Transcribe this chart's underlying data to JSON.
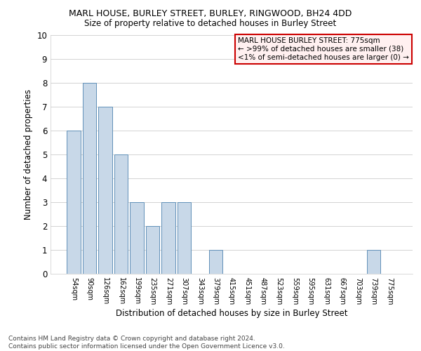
{
  "title1": "MARL HOUSE, BURLEY STREET, BURLEY, RINGWOOD, BH24 4DD",
  "title2": "Size of property relative to detached houses in Burley Street",
  "xlabel": "Distribution of detached houses by size in Burley Street",
  "ylabel": "Number of detached properties",
  "bar_color": "#c8d8e8",
  "bar_edgecolor": "#6090b8",
  "categories": [
    "54sqm",
    "90sqm",
    "126sqm",
    "162sqm",
    "199sqm",
    "235sqm",
    "271sqm",
    "307sqm",
    "343sqm",
    "379sqm",
    "415sqm",
    "451sqm",
    "487sqm",
    "523sqm",
    "559sqm",
    "595sqm",
    "631sqm",
    "667sqm",
    "703sqm",
    "739sqm",
    "775sqm"
  ],
  "values": [
    6,
    8,
    7,
    5,
    3,
    2,
    3,
    3,
    0,
    1,
    0,
    0,
    0,
    0,
    0,
    0,
    0,
    0,
    0,
    1,
    0
  ],
  "ylim": [
    0,
    10
  ],
  "yticks": [
    0,
    1,
    2,
    3,
    4,
    5,
    6,
    7,
    8,
    9,
    10
  ],
  "annotation_box_text": "MARL HOUSE BURLEY STREET: 775sqm\n← >99% of detached houses are smaller (38)\n<1% of semi-detached houses are larger (0) →",
  "annotation_box_facecolor": "#fff0f0",
  "annotation_box_edgecolor": "#cc0000",
  "footer_text": "Contains HM Land Registry data © Crown copyright and database right 2024.\nContains public sector information licensed under the Open Government Licence v3.0.",
  "background_color": "#ffffff",
  "grid_color": "#cccccc"
}
